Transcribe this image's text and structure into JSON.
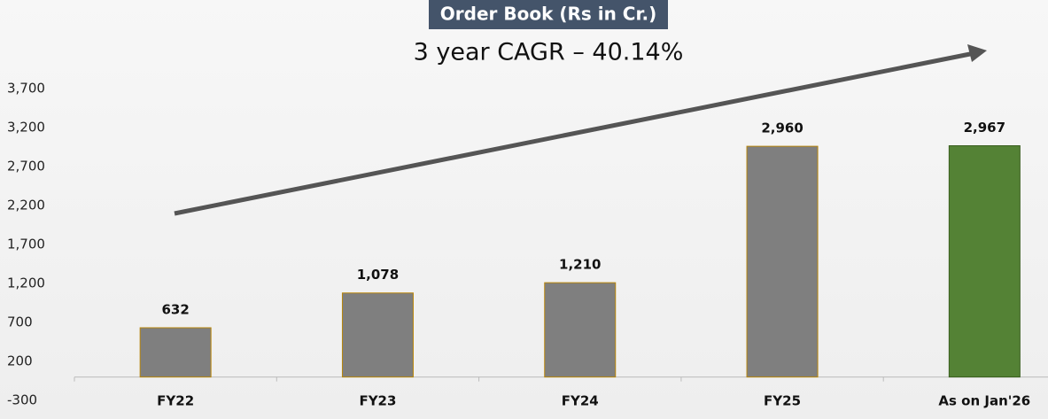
{
  "chart_data": {
    "type": "bar",
    "title": "Order Book (Rs in Cr.)",
    "subtitle": "3 year CAGR – 40.14%",
    "categories": [
      "FY22",
      "FY23",
      "FY24",
      "FY25",
      "As on Jan'26"
    ],
    "values": [
      632,
      1078,
      1210,
      2960,
      2967
    ],
    "value_labels": [
      "632",
      "1,078",
      "1,210",
      "2,960",
      "2,967"
    ],
    "colors": [
      "#7f7f7f",
      "#7f7f7f",
      "#7f7f7f",
      "#7f7f7f",
      "#548235"
    ],
    "ylim": [
      -300,
      3700
    ],
    "yticks": [
      -300,
      200,
      700,
      {
        "value": 1200,
        "label": "1,200"
      },
      {
        "value": 1700,
        "label": "1,700"
      },
      {
        "value": 2200,
        "label": "2,200"
      },
      {
        "value": 2700,
        "label": "2,700"
      },
      {
        "value": 3200,
        "label": "3,200"
      },
      {
        "value": 3700,
        "label": "3,700"
      }
    ],
    "grid": false
  }
}
